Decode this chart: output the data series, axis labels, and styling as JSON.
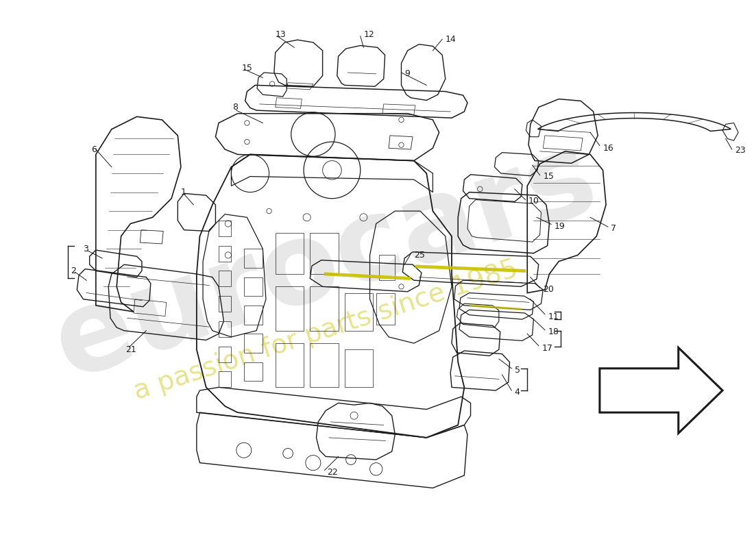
{
  "bg_color": "#ffffff",
  "line_color": "#1a1a1a",
  "lw_main": 1.2,
  "lw_detail": 0.7,
  "lw_thin": 0.5,
  "watermark1": "eurocars",
  "watermark2": "a passion for parts since 1985",
  "wm_color1": "#cccccc",
  "wm_color2": "#d4cc30",
  "wm_alpha1": 0.45,
  "wm_alpha2": 0.55,
  "label_fs": 9,
  "xlim": [
    0,
    1100
  ],
  "ylim": [
    0,
    800
  ]
}
